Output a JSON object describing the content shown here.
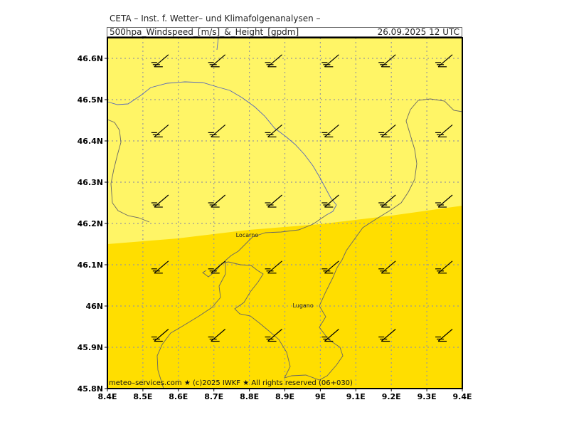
{
  "header": {
    "title": "CETA – Inst. f. Wetter– und Klimafolgenanalysen –",
    "parameter": "500hpa_Windspeed_[m/s]_&_Height_[gpdm]",
    "datetime": "26.09.2025 12 UTC"
  },
  "footer": "meteo–services.com ★ (c)2025 IWKF ★ All rights reserved (06+030)",
  "map": {
    "lat_ticks": [
      "46.6N",
      "46.5N",
      "46.4N",
      "46.3N",
      "46.2N",
      "46.1N",
      "46N",
      "45.9N",
      "45.8N"
    ],
    "lon_ticks": [
      "8.4E",
      "8.5E",
      "8.6E",
      "8.7E",
      "8.8E",
      "8.9E",
      "9E",
      "9.1E",
      "9.2E",
      "9.3E",
      "9.4E"
    ],
    "cities": [
      {
        "name": "Locarno",
        "lon": 8.79,
        "lat": 46.17
      },
      {
        "name": "Lugano",
        "lon": 8.95,
        "lat": 46.0
      }
    ],
    "colors": {
      "light_yellow": "#fff566",
      "dark_yellow": "#ffde00",
      "grid": "#999999",
      "border": "#000000"
    }
  }
}
